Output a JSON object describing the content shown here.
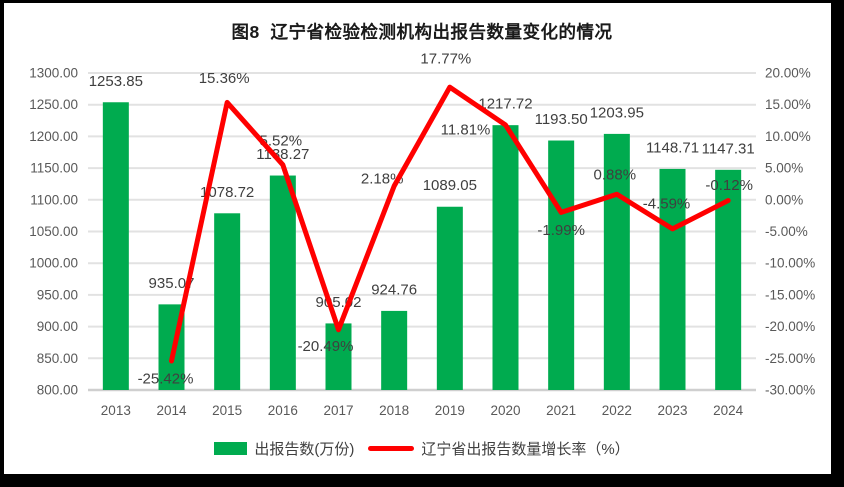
{
  "chart_data": {
    "type": "combo-bar-line",
    "title": "图8  辽宁省检验检测机构出报告数量变化的情况",
    "categories": [
      "2013",
      "2014",
      "2015",
      "2016",
      "2017",
      "2018",
      "2019",
      "2020",
      "2021",
      "2022",
      "2023",
      "2024"
    ],
    "series": [
      {
        "name": "出报告数(万份)",
        "type": "bar",
        "axis": "left",
        "color": "#00AB4F",
        "values": [
          1253.85,
          935.07,
          1078.72,
          1138.27,
          905.02,
          924.76,
          1089.05,
          1217.72,
          1193.5,
          1203.95,
          1148.71,
          1147.31
        ],
        "labels": [
          "1253.85",
          "935.07",
          "1078.72",
          "1138.27",
          "905.02",
          "924.76",
          "1089.05",
          "1217.72",
          "1193.50",
          "1203.95",
          "1148.71",
          "1147.31"
        ]
      },
      {
        "name": "辽宁省出报告数量增长率（%）",
        "type": "line",
        "axis": "right",
        "color": "#FF0000",
        "values": [
          null,
          -25.42,
          15.36,
          5.52,
          -20.49,
          2.18,
          17.77,
          11.81,
          -1.99,
          0.88,
          -4.59,
          -0.12
        ],
        "labels": [
          null,
          "-25.42%",
          "15.36%",
          "5.52%",
          "-20.49%",
          "2.18%",
          "17.77%",
          "11.81%",
          "-1.99%",
          "0.88%",
          "-4.59%",
          "-0.12%"
        ]
      }
    ],
    "left_axis": {
      "min": 800,
      "max": 1300,
      "step": 50,
      "tick_labels": [
        "1300.00",
        "1250.00",
        "1200.00",
        "1150.00",
        "1100.00",
        "1050.00",
        "1000.00",
        "950.00",
        "900.00",
        "850.00",
        "800.00"
      ]
    },
    "right_axis": {
      "min": -30,
      "max": 20,
      "step": 5,
      "tick_labels": [
        "20.00%",
        "15.00%",
        "10.00%",
        "5.00%",
        "0.00%",
        "-5.00%",
        "-10.00%",
        "-15.00%",
        "-20.00%",
        "-25.00%",
        "-30.00%"
      ]
    },
    "grid": true,
    "legend_position": "bottom",
    "line_label_offsets": [
      null,
      [
        -6,
        17
      ],
      [
        -3,
        -25
      ],
      [
        -2,
        -25
      ],
      [
        -13,
        16
      ],
      [
        -12,
        -8
      ],
      [
        -4,
        -29
      ],
      [
        -40,
        4
      ],
      [
        0,
        17
      ],
      [
        -2,
        -20
      ],
      [
        -6,
        -26
      ],
      [
        1,
        -16
      ]
    ],
    "colors": {
      "gridline": "#E2E2E2",
      "axis_line": "#CFCFCF",
      "tick_text": "#595959",
      "data_label_text": "#3F3F3F"
    }
  }
}
